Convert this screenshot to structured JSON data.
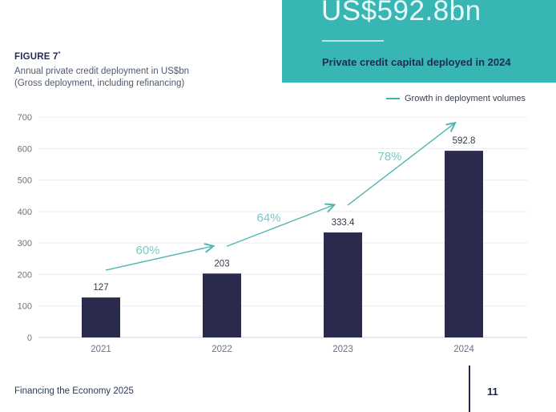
{
  "header_box": {
    "headline": "US$592.8bn",
    "caption": "Private credit capital deployed in 2024",
    "accent_color": "#38b6b3",
    "caption_color": "#232b57"
  },
  "figure": {
    "label": "FIGURE 7",
    "footnote_marker": "*",
    "subtitle_line1": "Annual private credit deployment in US$bn",
    "subtitle_line2": "(Gross deployment, including refinancing)"
  },
  "legend": {
    "label": "Growth in deployment volumes",
    "line_color": "#3fb3ae",
    "position": "top-right"
  },
  "chart_data": {
    "type": "bar",
    "categories": [
      "2021",
      "2022",
      "2023",
      "2024"
    ],
    "values": [
      127,
      203,
      333.4,
      592.8
    ],
    "value_labels": [
      "127",
      "203",
      "333.4",
      "592.8"
    ],
    "growth_labels": [
      "60%",
      "64%",
      "78%"
    ],
    "yticks": [
      0,
      100,
      200,
      300,
      400,
      500,
      600,
      700
    ],
    "ylim": [
      0,
      700
    ],
    "grid": true,
    "title": "",
    "xlabel": "",
    "ylabel": "",
    "bar_color": "#2a2a4f",
    "gridline_color": "#ececf1",
    "axis_line_color": "#d9dbe3",
    "tick_label_color": "#6b717f",
    "value_label_color": "#363b49",
    "arrow_color": "#4fb6b0",
    "growth_label_color": "#7cc8c4",
    "legend": [
      "Growth in deployment volumes"
    ],
    "legend_position": "top-right"
  },
  "footer": {
    "report_title": "Financing the Economy 2025",
    "page_number": "11"
  }
}
